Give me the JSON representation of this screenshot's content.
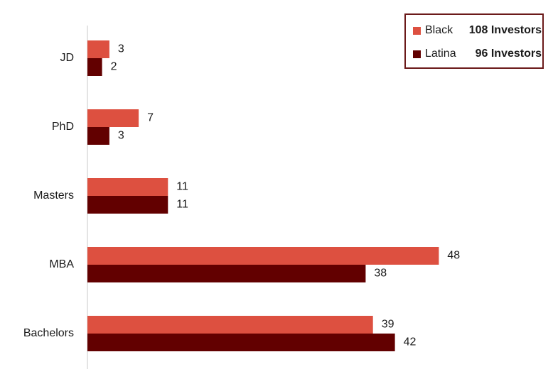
{
  "colors": {
    "black_series": "#dd5040",
    "latina_series": "#620000",
    "axis": "#c8c8c8",
    "legend_border": "#6b1a1a"
  },
  "legend": [
    {
      "name": "Black",
      "count": "108 Investors"
    },
    {
      "name": "Latina",
      "count": "96 Investors"
    }
  ],
  "chart_data": {
    "type": "bar",
    "orientation": "horizontal",
    "categories": [
      "JD",
      "PhD",
      "Masters",
      "MBA",
      "Bachelors"
    ],
    "series": [
      {
        "name": "Black",
        "values": [
          3,
          7,
          11,
          48,
          39
        ]
      },
      {
        "name": "Latina",
        "values": [
          2,
          3,
          11,
          38,
          42
        ]
      }
    ],
    "xlim": [
      0,
      52
    ],
    "title": "",
    "xlabel": "",
    "ylabel": "",
    "grid": false,
    "legend_position": "top-right",
    "data_labels": true
  }
}
